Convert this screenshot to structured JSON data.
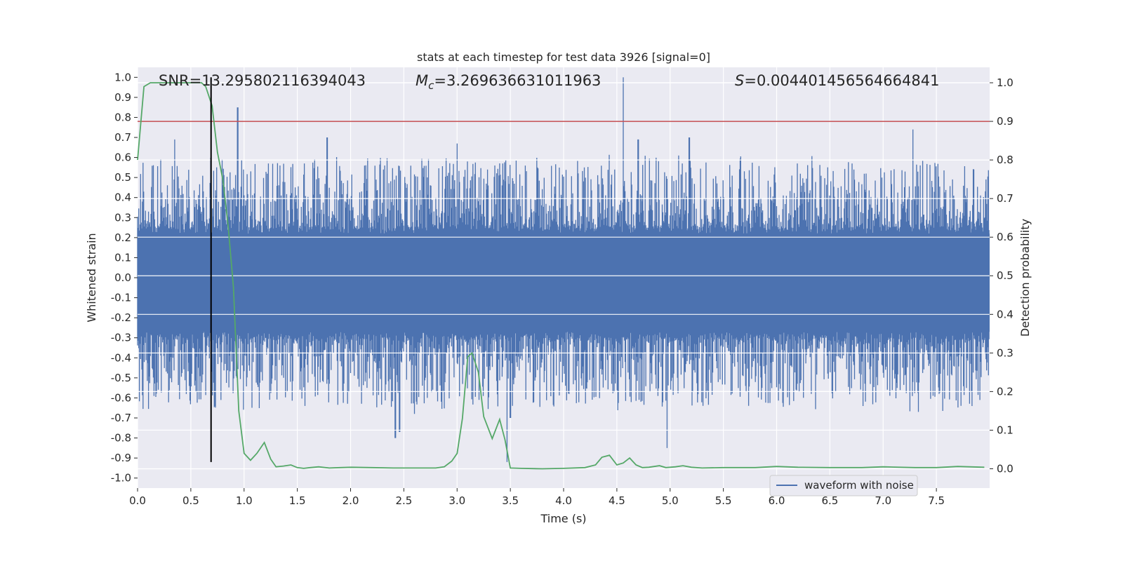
{
  "chart_data": {
    "type": "line",
    "title": "stats at each timestep for test data 3926 [signal=0]",
    "xlabel": "Time (s)",
    "ylabel": "Whitened strain",
    "y2label": "Detection probability",
    "xlim": [
      0,
      8
    ],
    "ylim": [
      -1.05,
      1.05
    ],
    "y2lim": [
      -0.05,
      1.04
    ],
    "grid": true,
    "background": "#eaeaf2",
    "x_ticks": [
      0.0,
      0.5,
      1.0,
      1.5,
      2.0,
      2.5,
      3.0,
      3.5,
      4.0,
      4.5,
      5.0,
      5.5,
      6.0,
      6.5,
      7.0,
      7.5
    ],
    "x_tick_labels": [
      "0.0",
      "0.5",
      "1.0",
      "1.5",
      "2.0",
      "2.5",
      "3.0",
      "3.5",
      "4.0",
      "4.5",
      "5.0",
      "5.5",
      "6.0",
      "6.5",
      "7.0",
      "7.5"
    ],
    "y_ticks": [
      1.0,
      0.9,
      0.8,
      0.7,
      0.6,
      0.5,
      0.4,
      0.3,
      0.2,
      0.1,
      0.0,
      -0.1,
      -0.2,
      -0.3,
      -0.4,
      -0.5,
      -0.6,
      -0.7,
      -0.8,
      -0.9,
      -1.0
    ],
    "y_tick_labels": [
      "1.0",
      "0.9",
      "0.8",
      "0.7",
      "0.6",
      "0.5",
      "0.4",
      "0.3",
      "0.2",
      "0.1",
      "0.0",
      "-0.1",
      "-0.2",
      "-0.3",
      "-0.4",
      "-0.5",
      "-0.6",
      "-0.7",
      "-0.8",
      "-0.9",
      "-1.0"
    ],
    "y2_ticks": [
      1.0,
      0.9,
      0.8,
      0.7,
      0.6,
      0.5,
      0.4,
      0.3,
      0.2,
      0.1,
      0.0
    ],
    "y2_tick_labels": [
      "1.0",
      "0.9",
      "0.8",
      "0.7",
      "0.6",
      "0.5",
      "0.4",
      "0.3",
      "0.2",
      "0.1",
      "0.0"
    ],
    "annotations": {
      "snr": "SNR=13.295802116394043",
      "mc_symbol": "M",
      "mc_sub": "c",
      "mc_value": "=3.269636631011963",
      "s_symbol": "S",
      "s_value": "=0.004401456564664841"
    },
    "series": [
      {
        "name": "waveform with noise",
        "axis": "left",
        "color": "#4c72b0",
        "kind": "noise",
        "core_amplitude": 0.22,
        "spikes": [
          {
            "x": 0.94,
            "y": 0.85
          },
          {
            "x": 1.78,
            "y": 0.7
          },
          {
            "x": 3.0,
            "y": 0.67
          },
          {
            "x": 4.56,
            "y": 1.0
          },
          {
            "x": 4.7,
            "y": 0.69
          },
          {
            "x": 5.18,
            "y": 0.7
          },
          {
            "x": 7.28,
            "y": 0.74
          },
          {
            "x": 0.35,
            "y": 0.69
          },
          {
            "x": 2.42,
            "y": -0.8
          },
          {
            "x": 2.46,
            "y": -0.77
          },
          {
            "x": 2.6,
            "y": -0.68
          },
          {
            "x": 3.47,
            "y": -0.92
          },
          {
            "x": 3.5,
            "y": -0.7
          },
          {
            "x": 4.97,
            "y": -0.85
          },
          {
            "x": 7.33,
            "y": -0.67
          },
          {
            "x": 1.57,
            "y": -0.64
          }
        ]
      },
      {
        "name": "Detection probability",
        "axis": "right",
        "color": "#55a868",
        "x": [
          0.0,
          0.06,
          0.12,
          0.2,
          0.3,
          0.4,
          0.5,
          0.6,
          0.64,
          0.7,
          0.75,
          0.8,
          0.85,
          0.9,
          0.95,
          1.0,
          1.06,
          1.12,
          1.19,
          1.25,
          1.3,
          1.37,
          1.44,
          1.5,
          1.56,
          1.62,
          1.7,
          1.8,
          1.9,
          2.0,
          2.2,
          2.4,
          2.6,
          2.8,
          2.88,
          2.95,
          3.0,
          3.05,
          3.1,
          3.14,
          3.2,
          3.25,
          3.33,
          3.4,
          3.45,
          3.5,
          3.6,
          3.8,
          4.0,
          4.2,
          4.3,
          4.36,
          4.43,
          4.5,
          4.56,
          4.62,
          4.68,
          4.74,
          4.8,
          4.9,
          4.96,
          5.05,
          5.12,
          5.2,
          5.3,
          5.5,
          5.8,
          6.0,
          6.2,
          6.5,
          6.8,
          7.0,
          7.3,
          7.5,
          7.7,
          7.95
        ],
        "y": [
          0.8,
          0.99,
          1.0,
          1.0,
          1.0,
          1.0,
          1.0,
          1.0,
          0.99,
          0.94,
          0.82,
          0.75,
          0.63,
          0.47,
          0.15,
          0.04,
          0.022,
          0.04,
          0.068,
          0.025,
          0.005,
          0.007,
          0.01,
          0.003,
          0.001,
          0.003,
          0.005,
          0.002,
          0.003,
          0.004,
          0.003,
          0.002,
          0.002,
          0.002,
          0.005,
          0.02,
          0.04,
          0.13,
          0.29,
          0.3,
          0.25,
          0.135,
          0.078,
          0.128,
          0.075,
          0.002,
          0.001,
          0.0,
          0.001,
          0.003,
          0.01,
          0.03,
          0.035,
          0.01,
          0.015,
          0.028,
          0.01,
          0.003,
          0.004,
          0.008,
          0.003,
          0.005,
          0.008,
          0.004,
          0.002,
          0.003,
          0.003,
          0.006,
          0.004,
          0.003,
          0.003,
          0.005,
          0.003,
          0.003,
          0.006,
          0.004
        ]
      }
    ],
    "hlines": [
      {
        "axis": "right",
        "y": 0.9,
        "color": "#c44e52"
      }
    ],
    "vlines": [
      {
        "x": 0.69,
        "ymin": -0.92,
        "ymax": 1.0,
        "color": "#000000"
      }
    ],
    "legend": {
      "placement": "lower-right",
      "entries": [
        "waveform with noise"
      ]
    }
  }
}
